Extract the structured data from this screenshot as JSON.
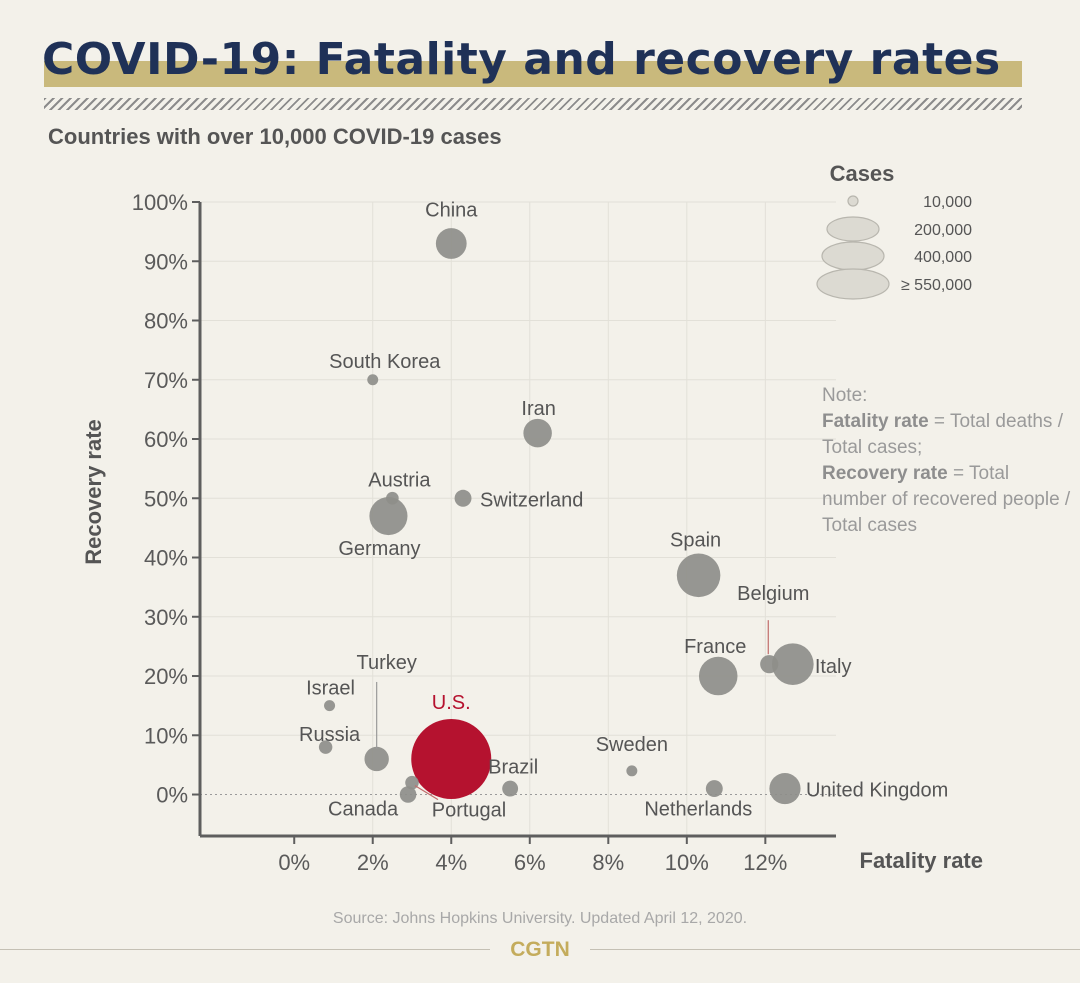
{
  "header": {
    "title": "COVID-19: Fatality and recovery rates",
    "subtitle": "Countries with over 10,000 COVID-19 cases"
  },
  "legend": {
    "title": "Cases",
    "items": [
      {
        "label": "10,000",
        "cases": 10000
      },
      {
        "label": "200,000",
        "cases": 200000
      },
      {
        "label": "400,000",
        "cases": 400000
      },
      {
        "label": "≥ 550,000",
        "cases": 550000
      }
    ]
  },
  "note": {
    "prefix": "Note:",
    "fatality_term": "Fatality rate",
    "fatality_def": " = Total deaths / Total cases;",
    "recovery_term": "Recovery rate",
    "recovery_def": " = Total number of recovered people / Total cases"
  },
  "source": "Source: Johns Hopkins University. Updated April 12, 2020.",
  "brand": "CGTN",
  "colors": {
    "bubble": "#8e8e8a",
    "highlight": "#b5122f",
    "axis": "#5e5e5e"
  },
  "chart_data": {
    "type": "scatter",
    "xlabel": "Fatality rate",
    "ylabel": "Recovery rate",
    "xlim": [
      -2.4,
      13.8
    ],
    "ylim": [
      -7,
      100
    ],
    "x_ticks": [
      0,
      2,
      4,
      6,
      8,
      10,
      12
    ],
    "x_tick_labels": [
      "0%",
      "2%",
      "4%",
      "6%",
      "8%",
      "10%",
      "12%"
    ],
    "y_ticks": [
      0,
      10,
      20,
      30,
      40,
      50,
      60,
      70,
      80,
      90,
      100
    ],
    "y_tick_labels": [
      "0%",
      "10%",
      "20%",
      "30%",
      "40%",
      "50%",
      "60%",
      "70%",
      "80%",
      "90%",
      "100%"
    ],
    "points": [
      {
        "name": "China",
        "fatality": 4.0,
        "recovery": 93,
        "cases": 83000
      },
      {
        "name": "South Korea",
        "fatality": 2.0,
        "recovery": 70,
        "cases": 10500
      },
      {
        "name": "Iran",
        "fatality": 6.2,
        "recovery": 61,
        "cases": 71000
      },
      {
        "name": "Austria",
        "fatality": 2.5,
        "recovery": 50,
        "cases": 14000
      },
      {
        "name": "Switzerland",
        "fatality": 4.3,
        "recovery": 50,
        "cases": 25000
      },
      {
        "name": "Germany",
        "fatality": 2.4,
        "recovery": 47,
        "cases": 127000
      },
      {
        "name": "Spain",
        "fatality": 10.3,
        "recovery": 37,
        "cases": 166000
      },
      {
        "name": "Belgium",
        "fatality": 12.1,
        "recovery": 22,
        "cases": 29000
      },
      {
        "name": "Italy",
        "fatality": 12.7,
        "recovery": 22,
        "cases": 152000
      },
      {
        "name": "France",
        "fatality": 10.8,
        "recovery": 20,
        "cases": 130000
      },
      {
        "name": "Turkey",
        "fatality": 2.1,
        "recovery": 6,
        "cases": 52000
      },
      {
        "name": "Israel",
        "fatality": 0.9,
        "recovery": 15,
        "cases": 10700
      },
      {
        "name": "Russia",
        "fatality": 0.8,
        "recovery": 8,
        "cases": 15800
      },
      {
        "name": "U.S.",
        "fatality": 4.0,
        "recovery": 6,
        "cases": 560000,
        "highlight": true
      },
      {
        "name": "Canada",
        "fatality": 2.9,
        "recovery": 0,
        "cases": 24000
      },
      {
        "name": "Portugal",
        "fatality": 3.0,
        "recovery": 2,
        "cases": 16000
      },
      {
        "name": "Brazil",
        "fatality": 5.5,
        "recovery": 1,
        "cases": 22000
      },
      {
        "name": "Sweden",
        "fatality": 8.6,
        "recovery": 4,
        "cases": 10500
      },
      {
        "name": "Netherlands",
        "fatality": 10.7,
        "recovery": 1,
        "cases": 25000
      },
      {
        "name": "United Kingdom",
        "fatality": 12.5,
        "recovery": 1,
        "cases": 85000
      }
    ]
  }
}
